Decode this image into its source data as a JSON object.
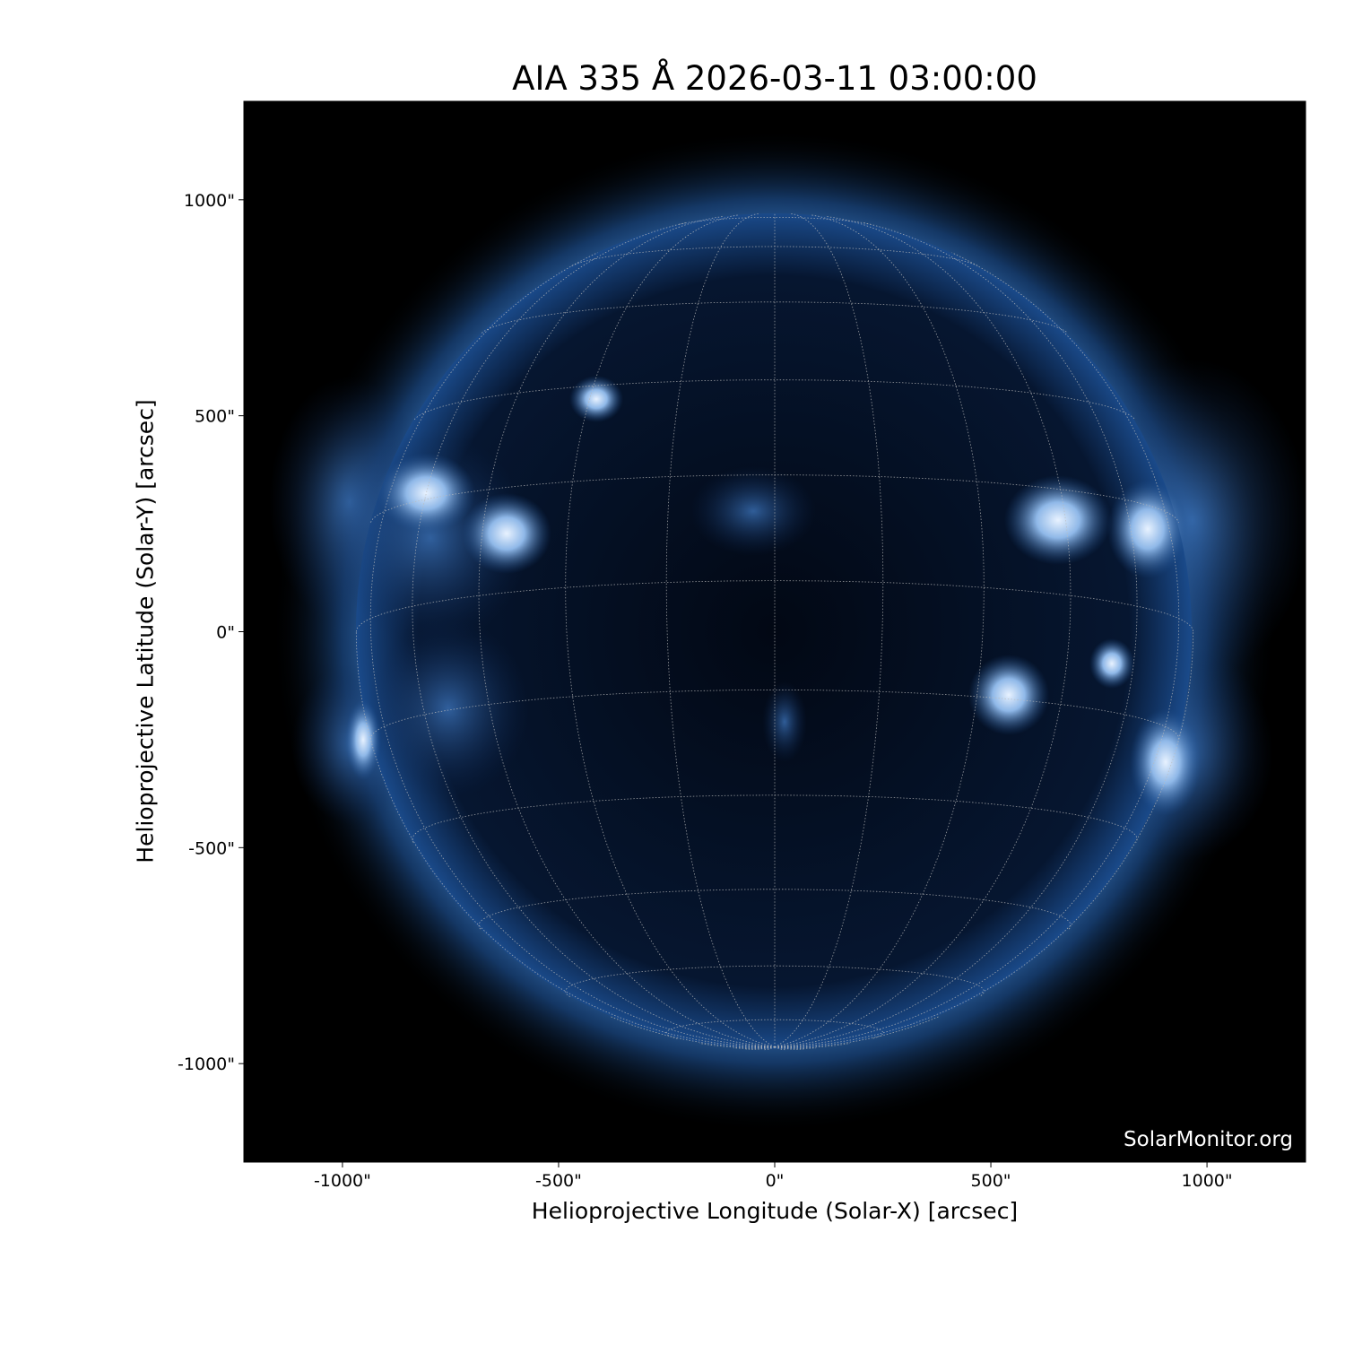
{
  "chart_data": {
    "type": "heatmap",
    "title": "AIA 335 Å 2026-03-11 03:00:00",
    "xlabel": "Helioprojective Longitude (Solar-X) [arcsec]",
    "ylabel": "Helioprojective Latitude (Solar-Y) [arcsec]",
    "xlim": [
      -1228,
      1228
    ],
    "ylim": [
      -1228,
      1228
    ],
    "xticks": [
      -1000,
      -500,
      0,
      500,
      1000
    ],
    "yticks": [
      -1000,
      -500,
      0,
      500,
      1000
    ],
    "xtick_labels": [
      "-1000\"",
      "-500\"",
      "0\"",
      "500\"",
      "1000\""
    ],
    "ytick_labels": [
      "-1000\"",
      "-500\"",
      "0\"",
      "500\"",
      "1000\""
    ],
    "solar_radius_arcsec": 968,
    "grid": true,
    "grid_spacing_deg": 15,
    "colormap": "sdoaia335",
    "colors": {
      "background": "#000000",
      "disk": "#06142a",
      "corona": "#2d6cb5",
      "bright": "#e6f0ff",
      "grid": "#bbbbbb"
    },
    "watermark": "SolarMonitor.org"
  }
}
